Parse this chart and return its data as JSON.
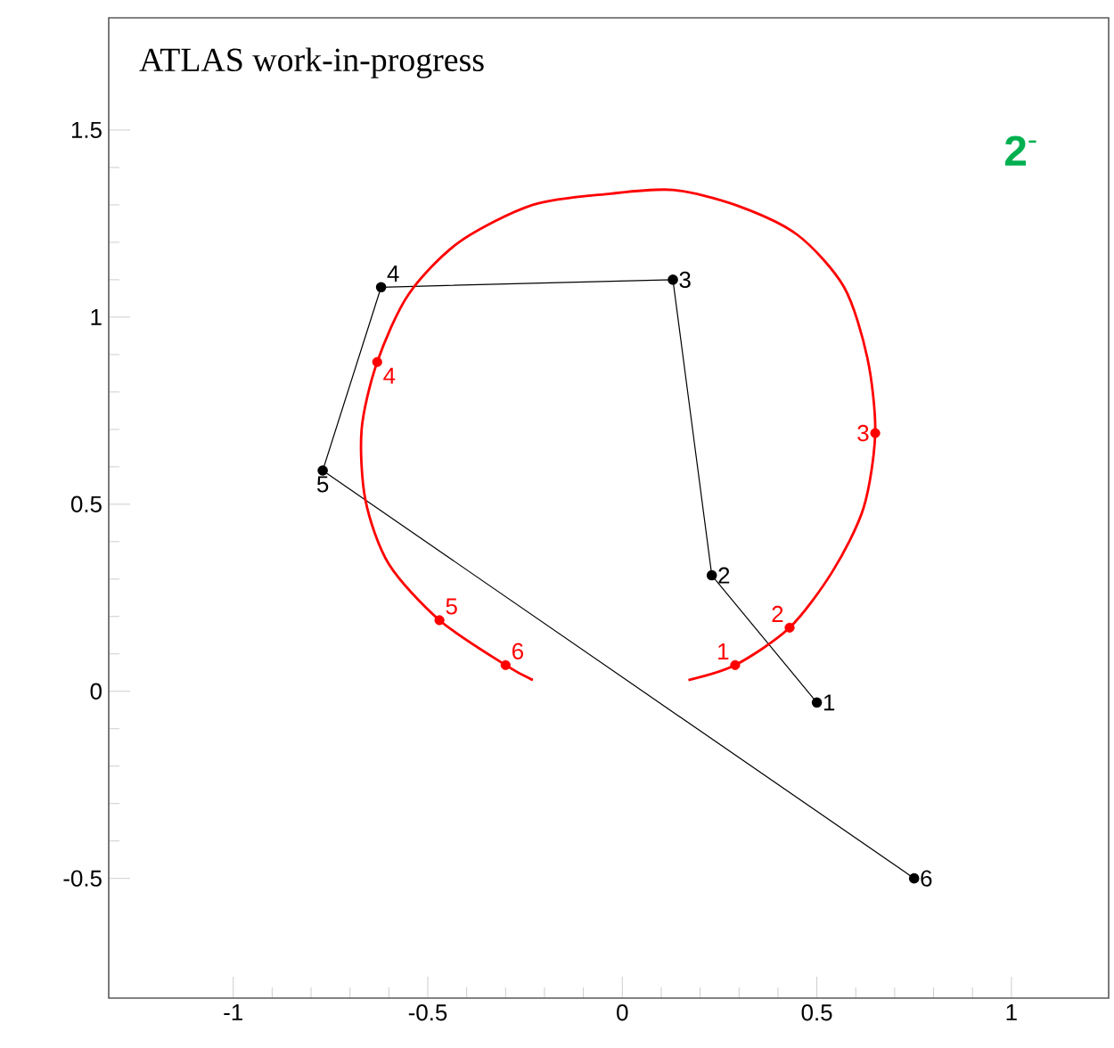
{
  "chart_data": {
    "type": "line",
    "xlim": [
      -1.32,
      1.25
    ],
    "ylim": [
      -0.82,
      1.8
    ],
    "xticks": [
      -1,
      -0.5,
      0,
      0.5,
      1
    ],
    "yticks": [
      -0.5,
      0,
      0.5,
      1,
      1.5
    ],
    "series": [
      {
        "color": "#000000",
        "marker": "circle",
        "line_style": "solid",
        "x": [
          0.5,
          0.23,
          0.13,
          -0.62,
          -0.77,
          0.75
        ],
        "values": [
          -0.03,
          0.31,
          1.1,
          1.08,
          0.59,
          -0.5
        ]
      },
      {
        "color": "#ff0000",
        "marker": "none",
        "line_style": "solid",
        "x": [
          0.17,
          0.29,
          0.43,
          0.54,
          0.62,
          0.65,
          0.63,
          0.57,
          0.45,
          0.29,
          0.13,
          -0.03,
          -0.23,
          -0.42,
          -0.55,
          -0.63,
          -0.67,
          -0.66,
          -0.6,
          -0.47,
          -0.3,
          -0.23
        ],
        "values": [
          0.03,
          0.07,
          0.17,
          0.32,
          0.49,
          0.69,
          0.89,
          1.08,
          1.22,
          1.3,
          1.34,
          1.33,
          1.3,
          1.2,
          1.06,
          0.88,
          0.7,
          0.51,
          0.34,
          0.19,
          0.07,
          0.03
        ]
      },
      {
        "type": "scatter",
        "color": "#ff0000",
        "marker": "circle",
        "x": [
          0.29,
          0.43,
          0.65,
          -0.63,
          -0.47,
          -0.3
        ],
        "values": [
          0.07,
          0.17,
          0.69,
          0.88,
          0.19,
          0.07
        ]
      }
    ],
    "annotations": [
      "ATLAS work-in-progress",
      "**2**$^{-}$",
      {
        "text": "1",
        "x": 0.5,
        "y": -0.03
      },
      {
        "text": "2",
        "x": 0.23,
        "y": 0.31
      },
      {
        "text": "3",
        "x": 0.13,
        "y": 1.1
      },
      {
        "text": "4",
        "x": -0.62,
        "y": 1.08
      },
      {
        "text": "5",
        "x": -0.77,
        "y": 0.59
      },
      {
        "text": "6",
        "x": 0.75,
        "y": -0.5
      },
      {
        "text": "1",
        "x": 0.29,
        "y": 0.07
      },
      {
        "text": "2",
        "x": 0.43,
        "y": 0.17
      },
      {
        "text": "3",
        "x": 0.65,
        "y": 0.69
      },
      {
        "text": "4",
        "x": -0.63,
        "y": 0.88
      },
      {
        "text": "5",
        "x": -0.47,
        "y": 0.19
      },
      {
        "text": "6",
        "x": -0.3,
        "y": 0.07
      }
    ]
  }
}
